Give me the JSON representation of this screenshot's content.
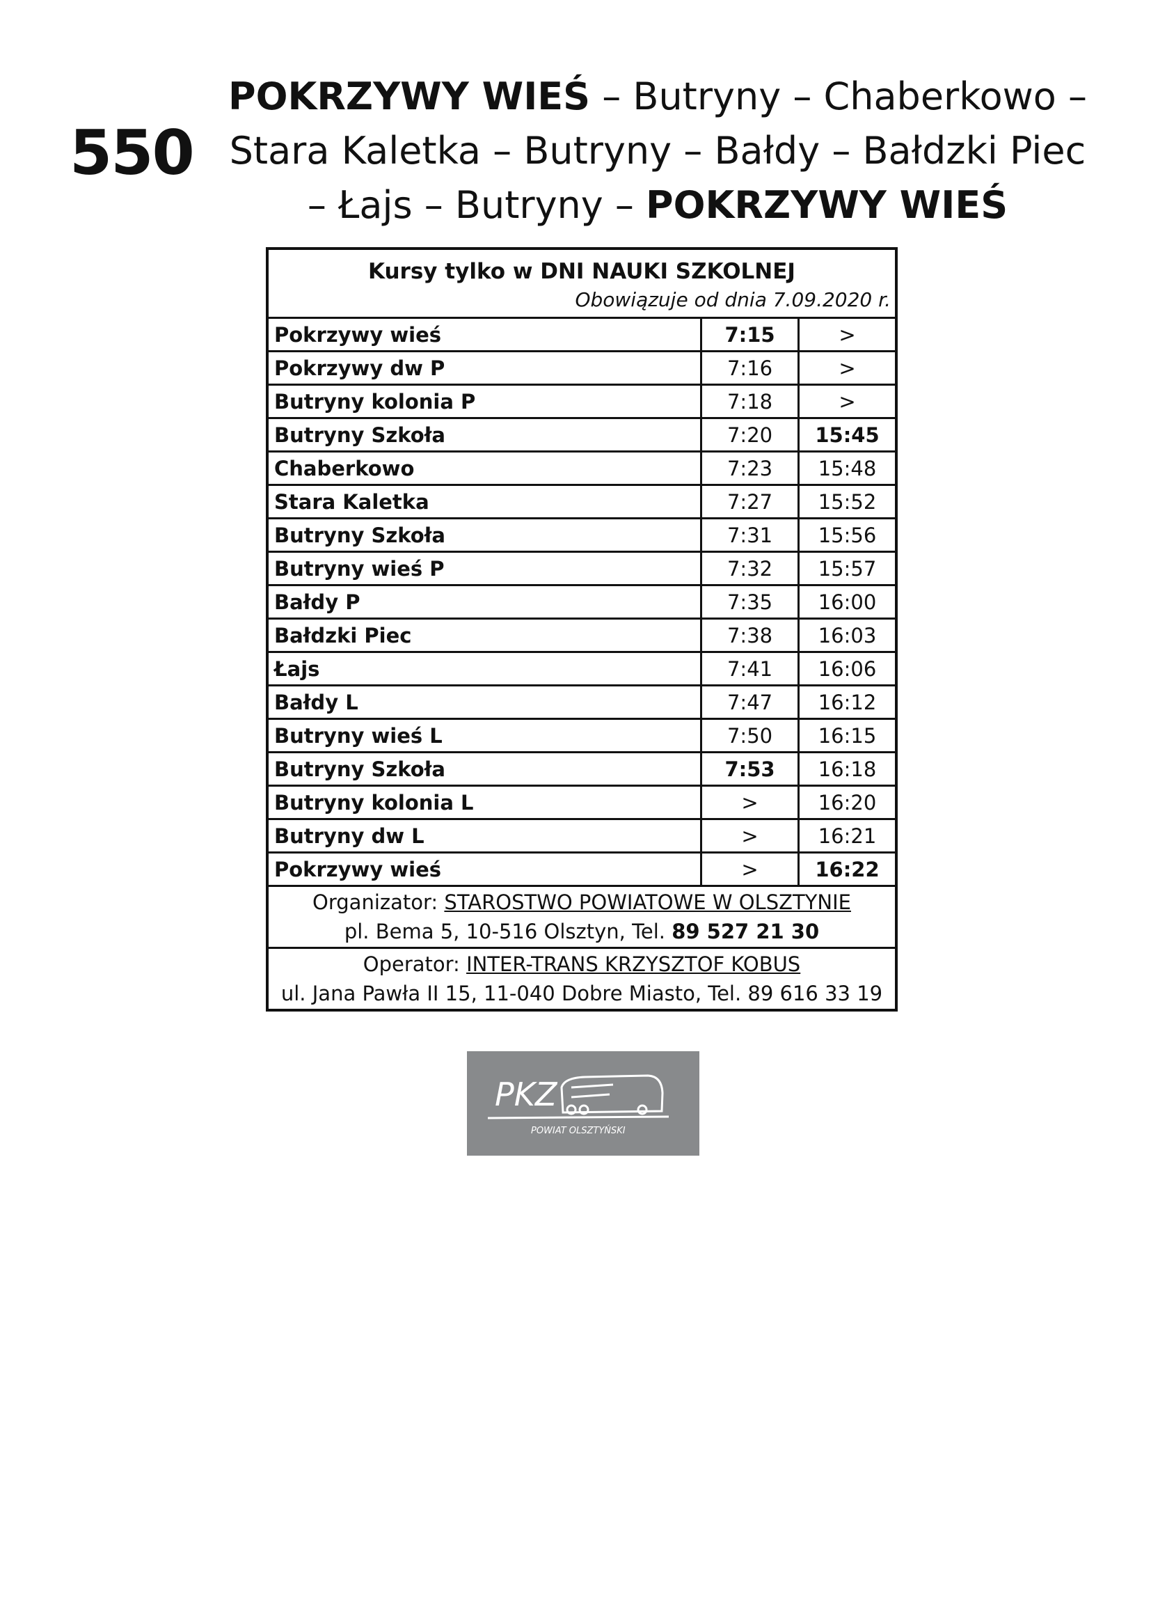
{
  "route_number": "550",
  "title": {
    "line1_bold": "POKRZYWY WIEŚ",
    "line1_rest": " – Butryny – Chaberkowo –",
    "line2": "Stara Kaletka – Butryny – Bałdy – Bałdzki Piec",
    "line3_rest": "– Łajs – Butryny – ",
    "line3_bold": "POKRZYWY WIEŚ"
  },
  "table": {
    "heading": "Kursy tylko w DNI NAUKI SZKOLNEJ",
    "valid_from": "Obowiązuje od dnia 7.09.2020 r.",
    "rows": [
      {
        "stop": "Pokrzywy wieś",
        "c1": "7:15",
        "c2": ">",
        "b1": true,
        "b2": false
      },
      {
        "stop": "Pokrzywy dw P",
        "c1": "7:16",
        "c2": ">",
        "b1": false,
        "b2": false
      },
      {
        "stop": "Butryny kolonia P",
        "c1": "7:18",
        "c2": ">",
        "b1": false,
        "b2": false
      },
      {
        "stop": "Butryny Szkoła",
        "c1": "7:20",
        "c2": "15:45",
        "b1": false,
        "b2": true
      },
      {
        "stop": "Chaberkowo",
        "c1": "7:23",
        "c2": "15:48",
        "b1": false,
        "b2": false
      },
      {
        "stop": "Stara Kaletka",
        "c1": "7:27",
        "c2": "15:52",
        "b1": false,
        "b2": false
      },
      {
        "stop": "Butryny Szkoła",
        "c1": "7:31",
        "c2": "15:56",
        "b1": false,
        "b2": false
      },
      {
        "stop": "Butryny wieś P",
        "c1": "7:32",
        "c2": "15:57",
        "b1": false,
        "b2": false
      },
      {
        "stop": "Bałdy P",
        "c1": "7:35",
        "c2": "16:00",
        "b1": false,
        "b2": false
      },
      {
        "stop": "Bałdzki Piec",
        "c1": "7:38",
        "c2": "16:03",
        "b1": false,
        "b2": false
      },
      {
        "stop": "Łajs",
        "c1": "7:41",
        "c2": "16:06",
        "b1": false,
        "b2": false
      },
      {
        "stop": "Bałdy L",
        "c1": "7:47",
        "c2": "16:12",
        "b1": false,
        "b2": false
      },
      {
        "stop": "Butryny wieś L",
        "c1": "7:50",
        "c2": "16:15",
        "b1": false,
        "b2": false
      },
      {
        "stop": "Butryny Szkoła",
        "c1": "7:53",
        "c2": "16:18",
        "b1": true,
        "b2": false
      },
      {
        "stop": "Butryny kolonia L",
        "c1": ">",
        "c2": "16:20",
        "b1": false,
        "b2": false
      },
      {
        "stop": "Butryny dw L",
        "c1": ">",
        "c2": "16:21",
        "b1": false,
        "b2": false
      },
      {
        "stop": "Pokrzywy wieś",
        "c1": ">",
        "c2": "16:22",
        "b1": false,
        "b2": true
      }
    ]
  },
  "organizer": {
    "label": "Organizator: ",
    "name": "STAROSTWO POWIATOWE W OLSZTYNIE",
    "address": "pl. Bema 5, 10-516 Olsztyn, Tel. ",
    "phone": "89 527 21 30"
  },
  "operator": {
    "label": "Operator: ",
    "name": "INTER-TRANS KRZYSZTOF KOBUS",
    "address": "ul. Jana Pawła II 15, 11-040 Dobre Miasto, Tel. 89 616 33 19"
  },
  "logo": {
    "text": "PKZ",
    "subtext": "POWIAT OLSZTYŃSKI",
    "background": "#888a8c"
  }
}
